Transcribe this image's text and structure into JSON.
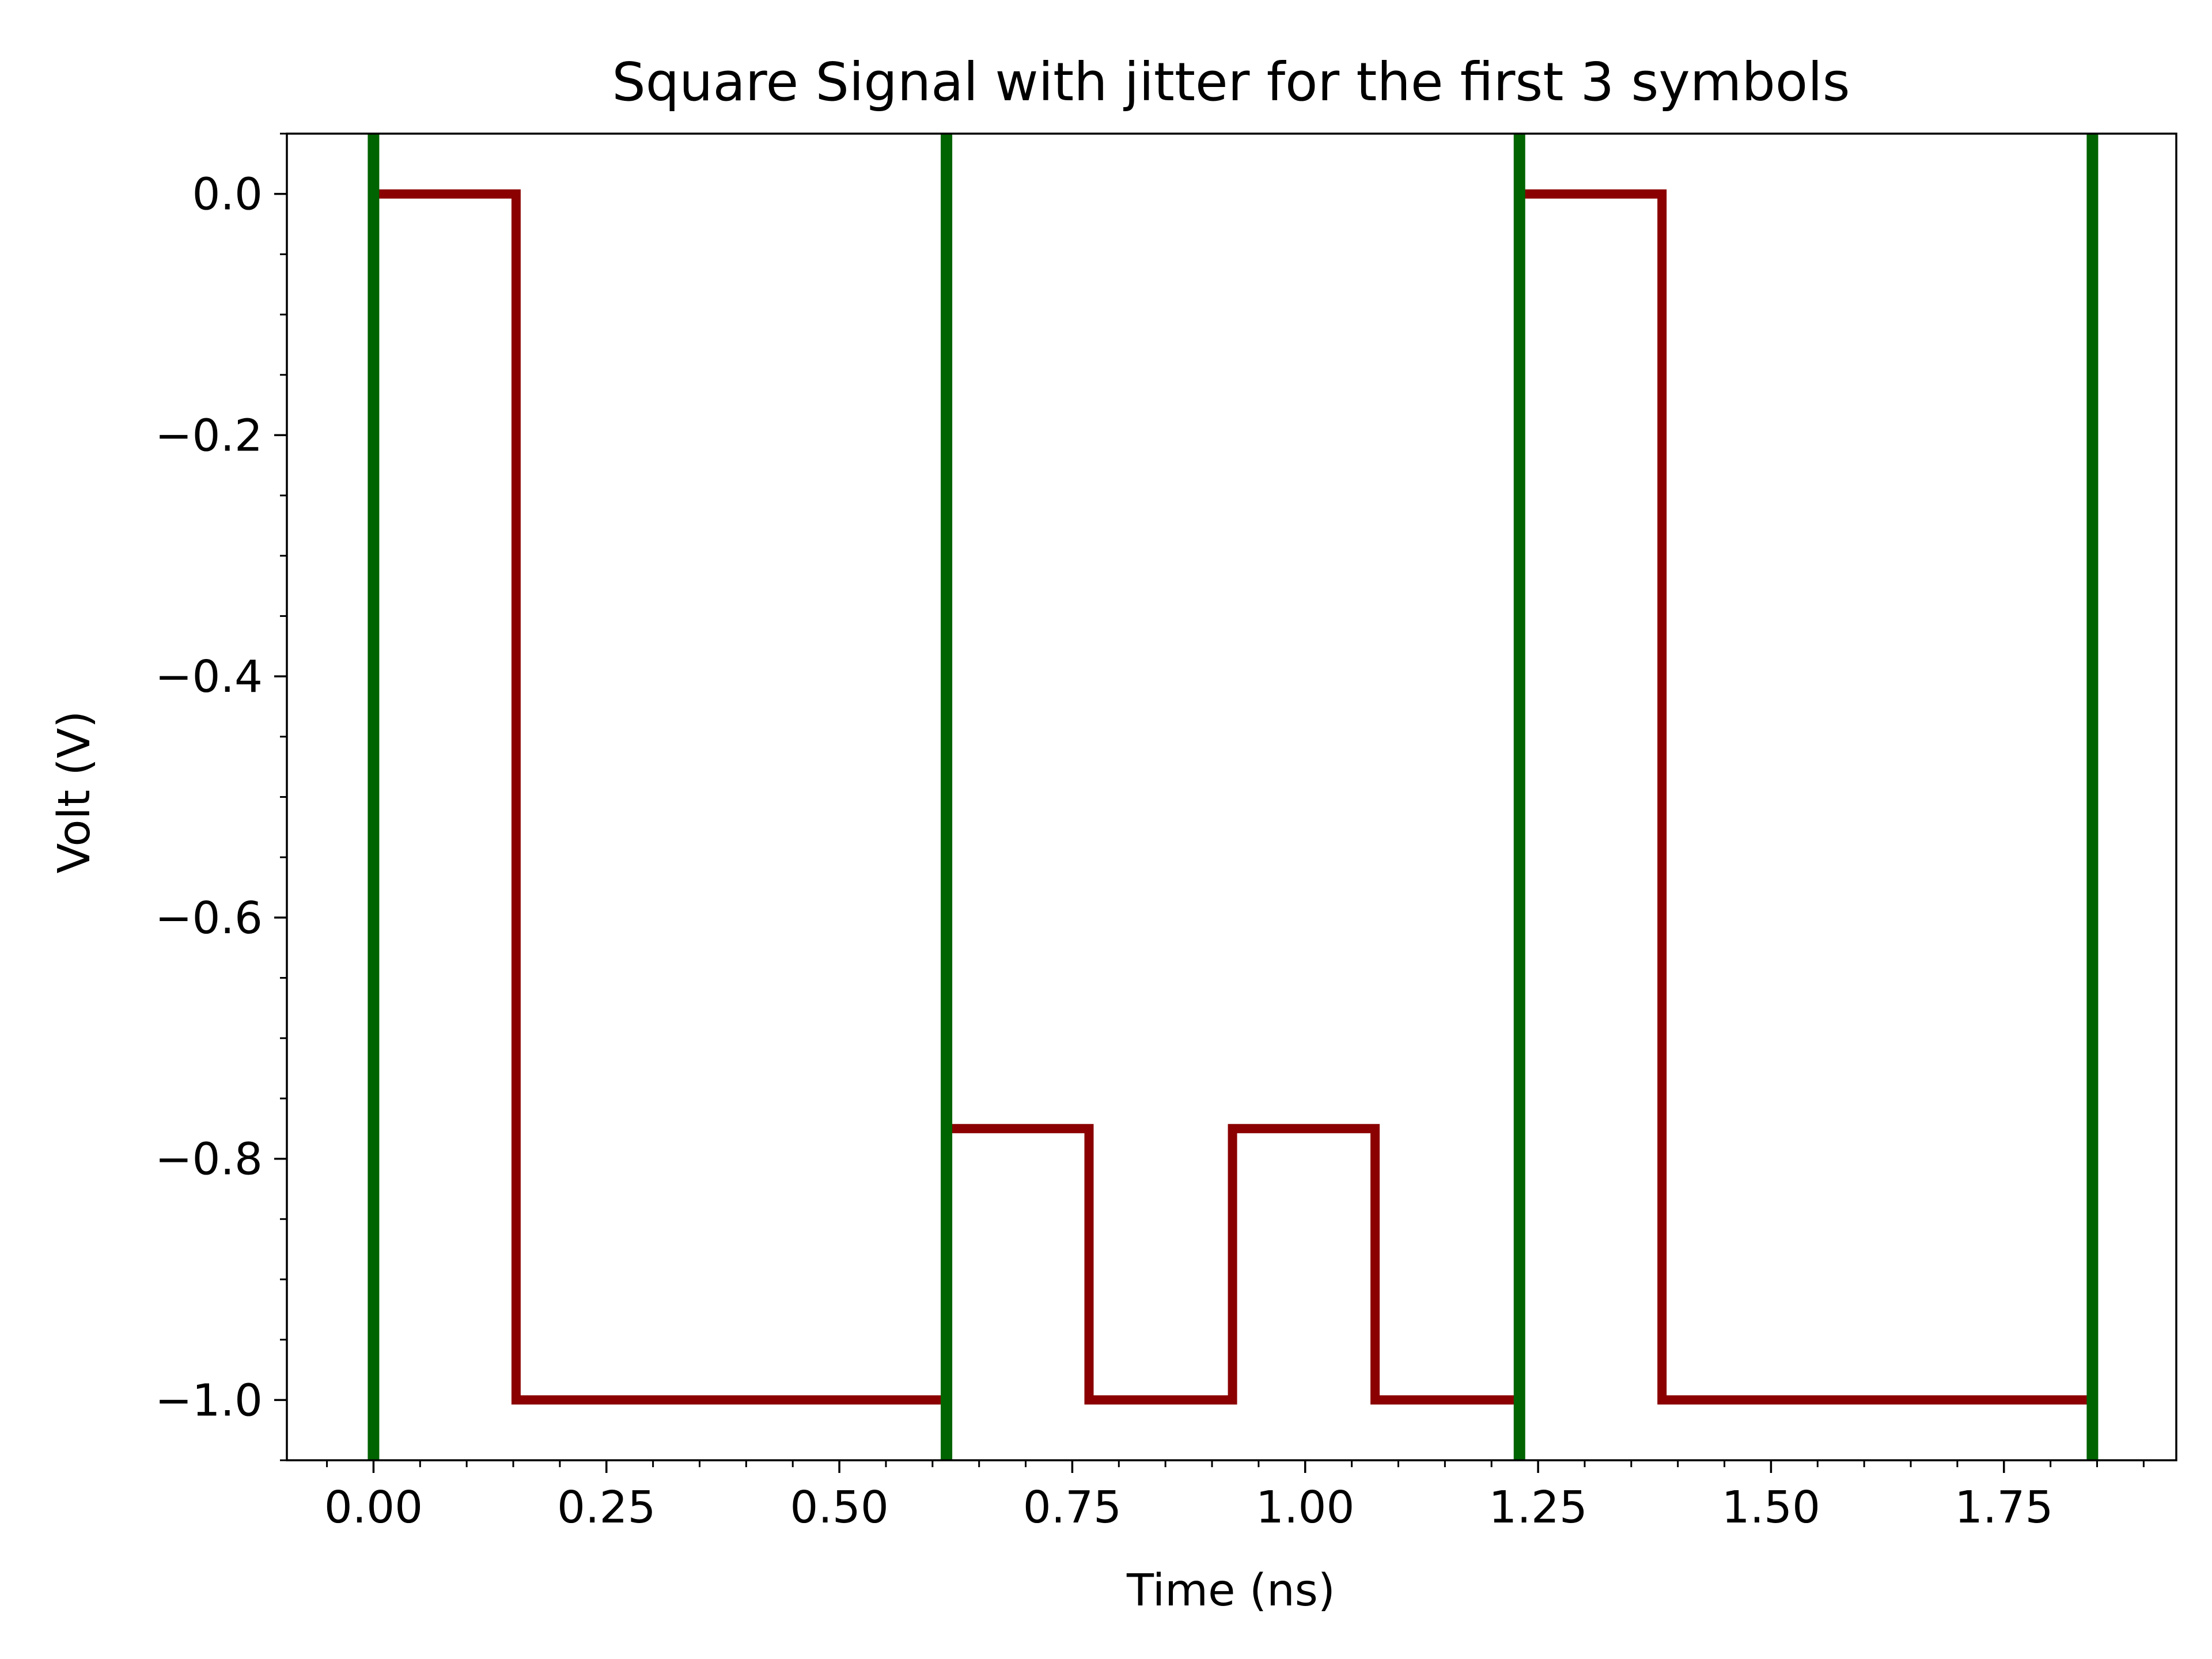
{
  "chart_data": {
    "type": "line",
    "title": "Square Signal with jitter for the first 3 symbols",
    "xlabel": "Time (ns)",
    "ylabel": "Volt (V)",
    "xlim": [
      -0.093,
      1.935
    ],
    "ylim": [
      -1.05,
      0.05
    ],
    "x_ticks": [
      0.0,
      0.25,
      0.5,
      0.75,
      1.0,
      1.25,
      1.5,
      1.75
    ],
    "x_tick_labels": [
      "0.00",
      "0.25",
      "0.50",
      "0.75",
      "1.00",
      "1.25",
      "1.50",
      "1.75"
    ],
    "y_ticks": [
      0.0,
      -0.2,
      -0.4,
      -0.6,
      -0.8,
      -1.0
    ],
    "y_tick_labels": [
      "0.0",
      "−0.2",
      "−0.4",
      "−0.6",
      "−0.8",
      "−1.0"
    ],
    "x_minor_step": 0.05,
    "y_minor_step": 0.05,
    "grid": false,
    "series": [
      {
        "color": "#8b0000",
        "x": [
          0.0,
          0.153,
          0.153,
          0.615,
          0.615,
          0.768,
          0.768,
          0.922,
          0.922,
          1.075,
          1.075,
          1.23,
          1.23,
          1.383,
          1.383,
          1.845
        ],
        "y": [
          0.0,
          0.0,
          -1.0,
          -1.0,
          -0.775,
          -0.775,
          -1.0,
          -1.0,
          -0.775,
          -0.775,
          -1.0,
          -1.0,
          0.0,
          0.0,
          -1.0,
          -1.0
        ]
      }
    ],
    "vlines": {
      "color": "#006400",
      "x": [
        0.0,
        0.615,
        1.23,
        1.845
      ]
    }
  }
}
